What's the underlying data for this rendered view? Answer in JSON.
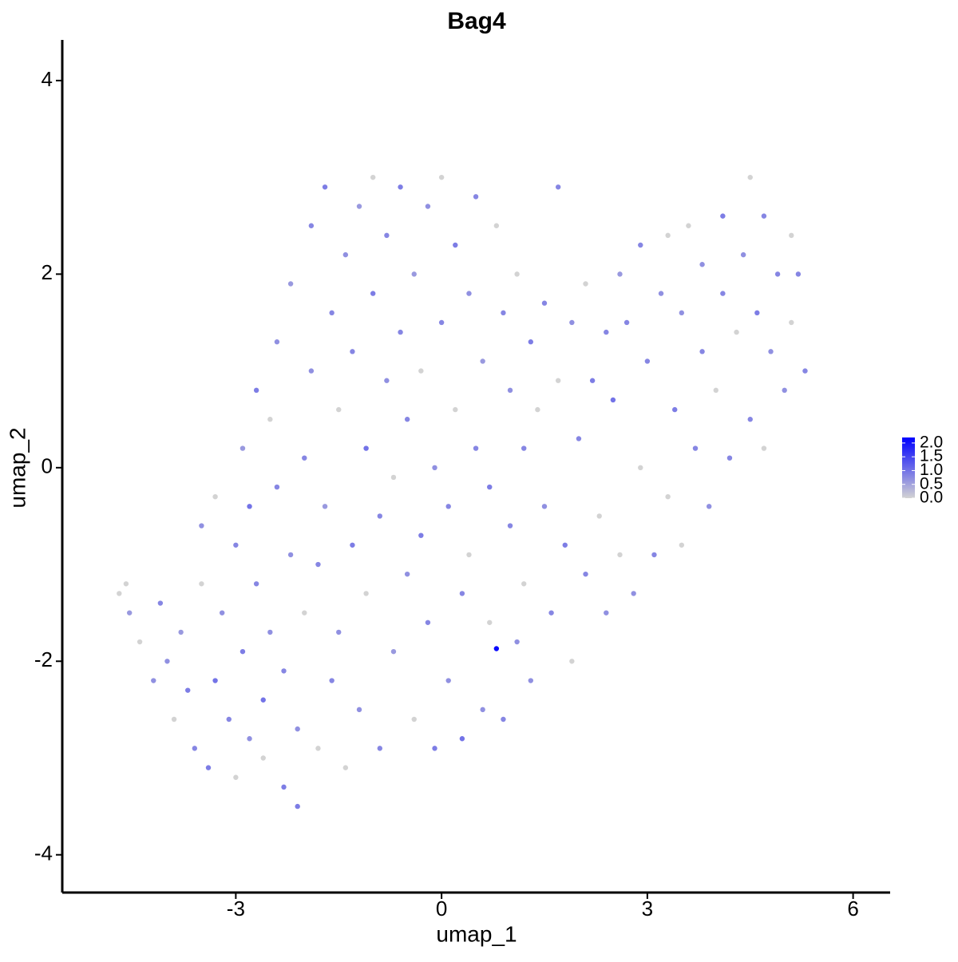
{
  "chart_data": {
    "type": "scatter",
    "title": "Bag4",
    "xlabel": "umap_1",
    "ylabel": "umap_2",
    "xlim": [
      -5.53,
      6.54
    ],
    "ylim": [
      -4.39,
      4.42
    ],
    "xticks": [
      -3,
      0,
      3,
      6
    ],
    "yticks": [
      -4,
      -2,
      0,
      2,
      4
    ],
    "color_low": "#d3d3d3",
    "color_high": "#0000ff",
    "color_lim": [
      0,
      2.2
    ],
    "color_ticks": [
      {
        "value": 0,
        "label": "0.0"
      },
      {
        "value": 0.5,
        "label": "0.5"
      },
      {
        "value": 1,
        "label": "1.0"
      },
      {
        "value": 1.5,
        "label": "1.5"
      },
      {
        "value": 2,
        "label": "2.0"
      }
    ],
    "x": [
      -4.7,
      -4.6,
      -4.55,
      -4.4,
      -4.2,
      -4.1,
      -4.0,
      -3.9,
      -3.8,
      -3.7,
      -3.6,
      -3.5,
      -3.5,
      -3.4,
      -3.3,
      -3.3,
      -3.2,
      -3.1,
      -3.0,
      -3.0,
      -2.9,
      -2.9,
      -2.8,
      -2.8,
      -2.7,
      -2.7,
      -2.6,
      -2.6,
      -2.5,
      -2.5,
      -2.4,
      -2.4,
      -2.3,
      -2.3,
      -2.2,
      -2.2,
      -2.1,
      -2.1,
      -2.0,
      -2.0,
      -1.9,
      -1.9,
      -1.8,
      -1.8,
      -1.7,
      -1.7,
      -1.6,
      -1.6,
      -1.5,
      -1.5,
      -1.4,
      -1.4,
      -1.3,
      -1.3,
      -1.2,
      -1.2,
      -1.1,
      -1.1,
      -1.0,
      -1.0,
      -0.9,
      -0.9,
      -0.8,
      -0.8,
      -0.7,
      -0.7,
      -0.6,
      -0.6,
      -0.5,
      -0.5,
      -0.4,
      -0.4,
      -0.3,
      -0.3,
      -0.2,
      -0.2,
      -0.1,
      -0.1,
      0.0,
      0.0,
      0.1,
      0.1,
      0.2,
      0.2,
      0.3,
      0.3,
      0.4,
      0.4,
      0.5,
      0.5,
      0.6,
      0.6,
      0.7,
      0.7,
      0.8,
      0.8,
      0.9,
      0.9,
      1.0,
      1.0,
      1.1,
      1.1,
      1.2,
      1.2,
      1.3,
      1.3,
      1.4,
      1.5,
      1.5,
      1.6,
      1.7,
      1.7,
      1.8,
      1.9,
      1.9,
      2.0,
      2.1,
      2.1,
      2.2,
      2.3,
      2.4,
      2.4,
      2.5,
      2.6,
      2.6,
      2.7,
      2.8,
      2.9,
      2.9,
      3.0,
      3.1,
      3.2,
      3.3,
      3.3,
      3.4,
      3.5,
      3.5,
      3.6,
      3.7,
      3.8,
      3.8,
      3.9,
      4.0,
      4.1,
      4.1,
      4.2,
      4.3,
      4.4,
      4.5,
      4.5,
      4.6,
      4.7,
      4.7,
      4.8,
      4.9,
      5.0,
      5.1,
      5.1,
      5.2,
      5.3
    ],
    "y": [
      -1.3,
      -1.2,
      -1.5,
      -1.8,
      -2.2,
      -1.4,
      -2.0,
      -2.6,
      -1.7,
      -2.3,
      -2.9,
      -1.2,
      -0.6,
      -3.1,
      -2.2,
      -0.3,
      -1.5,
      -2.6,
      -3.2,
      -0.8,
      -1.9,
      0.2,
      -2.8,
      -0.4,
      0.8,
      -1.2,
      -3.0,
      -2.4,
      -1.7,
      0.5,
      -0.2,
      1.3,
      -3.3,
      -2.1,
      -0.9,
      1.9,
      -3.5,
      -2.7,
      -1.5,
      0.1,
      1.0,
      2.5,
      -2.9,
      -1.0,
      2.9,
      -0.4,
      1.6,
      -2.2,
      0.6,
      -1.7,
      2.2,
      -3.1,
      -0.8,
      1.2,
      2.7,
      -2.5,
      0.2,
      -1.3,
      3.0,
      1.8,
      -0.5,
      -2.9,
      0.9,
      2.4,
      -1.9,
      -0.1,
      1.4,
      2.9,
      -1.1,
      0.5,
      -2.6,
      2.0,
      -0.7,
      1.0,
      2.7,
      -1.6,
      0.0,
      -2.9,
      1.5,
      3.0,
      -0.4,
      -2.2,
      2.3,
      0.6,
      -1.3,
      -2.8,
      1.8,
      -0.9,
      2.8,
      0.2,
      -2.5,
      1.1,
      -0.2,
      -1.6,
      -1.87,
      2.5,
      1.6,
      -2.6,
      0.8,
      -0.6,
      -1.8,
      2.0,
      0.2,
      -1.2,
      1.3,
      -2.2,
      0.6,
      -0.4,
      1.7,
      -1.5,
      2.9,
      0.9,
      -0.8,
      1.5,
      -2.0,
      0.3,
      1.9,
      -1.1,
      0.9,
      -0.5,
      1.4,
      -1.5,
      0.7,
      2.0,
      -0.9,
      1.5,
      -1.3,
      2.3,
      0.0,
      1.1,
      -0.9,
      1.8,
      -0.3,
      2.4,
      0.6,
      1.6,
      -0.8,
      2.5,
      0.2,
      1.2,
      2.1,
      -0.4,
      0.8,
      1.8,
      2.6,
      0.1,
      1.4,
      2.2,
      3.0,
      0.5,
      1.6,
      2.6,
      0.2,
      1.2,
      2.0,
      0.8,
      2.4,
      1.5,
      2.0,
      1.0
    ],
    "expression": [
      0,
      0,
      0.6,
      0,
      0.7,
      0.8,
      0.7,
      0,
      0.6,
      0.9,
      0.8,
      0,
      0.7,
      0.9,
      1.0,
      0,
      0.7,
      0.8,
      0,
      0.8,
      0.9,
      0.6,
      0.7,
      1.0,
      0.9,
      0.8,
      0,
      1.0,
      0.7,
      0,
      0.8,
      0.7,
      0.9,
      0.8,
      0.7,
      0.6,
      0.9,
      0.7,
      0,
      0.8,
      0.7,
      0.8,
      0,
      0.8,
      0.9,
      0.6,
      0.8,
      0.8,
      0,
      0.7,
      0.7,
      0,
      0.9,
      0.8,
      0.6,
      0.7,
      1.0,
      0,
      0,
      0.9,
      0.8,
      0.8,
      0.7,
      0.8,
      0.6,
      0,
      0.8,
      0.9,
      0.7,
      0.8,
      0,
      0.6,
      0.9,
      0,
      0.7,
      0.8,
      0.7,
      0.9,
      0.8,
      0,
      0.8,
      0.7,
      0.9,
      0,
      0.8,
      1.0,
      0.7,
      0,
      0.8,
      0.8,
      0.7,
      0.6,
      0.9,
      0,
      2.1,
      0,
      0.8,
      0.8,
      0.7,
      0.8,
      0.7,
      0,
      0.8,
      0,
      0.9,
      0.7,
      0,
      0.7,
      0.8,
      0.8,
      0.8,
      0,
      0.9,
      0.7,
      0,
      0.8,
      0,
      0.8,
      0.9,
      0,
      0.8,
      0.7,
      1.0,
      0.6,
      0,
      0.8,
      0.7,
      0.8,
      0,
      0.8,
      0.8,
      0.7,
      0,
      0,
      0.9,
      0.7,
      0,
      0,
      0.8,
      0.8,
      0.7,
      0.7,
      0,
      0.8,
      0.9,
      0.8,
      0,
      0.7,
      0,
      0.8,
      0.9,
      0.8,
      0,
      0.7,
      0.8,
      0.7,
      0,
      0,
      0.8,
      0.8
    ]
  }
}
